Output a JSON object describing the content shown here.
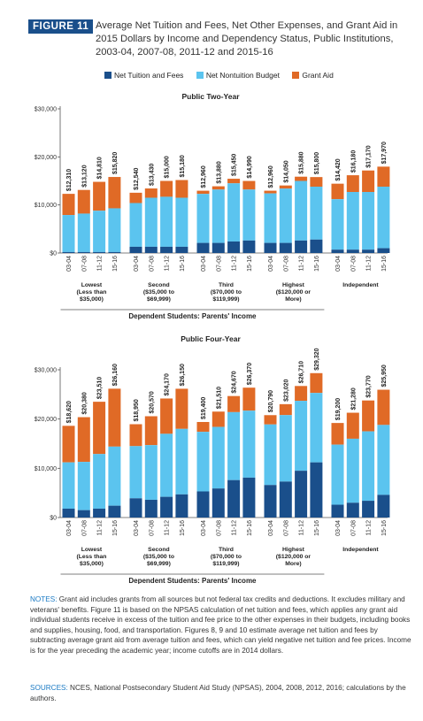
{
  "header": {
    "figure_label": "FIGURE 11",
    "title": "Average Net Tuition and Fees, Net Other Expenses, and Grant Aid in 2015 Dollars by Income and Dependency Status, Public Institutions, 2003-04, 2007-08, 2011-12 and 2015-16"
  },
  "legend": [
    {
      "label": "Net Tuition and Fees",
      "color": "#1a4f8b"
    },
    {
      "label": "Net Nontuition Budget",
      "color": "#5bc4ef"
    },
    {
      "label": "Grant Aid",
      "color": "#e06a26"
    }
  ],
  "notes": {
    "label": "NOTES:",
    "text": "Grant aid includes grants from all sources but not federal tax credits and deductions. It excludes military and veterans' benefits. Figure 11 is based on the NPSAS calculation of net tuition and fees, which applies any grant aid individual students receive in excess of the tuition and fee price to the other expenses in their budgets, including books and supplies, housing, food, and transportation. Figures 8, 9 and 10 estimate average net tuition and fees by subtracting average grant aid from average tuition and fees, which can yield negative net tuition and fee prices. Income is for the year preceding the academic year; income cutoffs are in 2014 dollars."
  },
  "sources": {
    "label": "SOURCES:",
    "text": "NCES, National Postsecondary Student Aid Study (NPSAS), 2004, 2008, 2012, 2016; calculations by the authors."
  },
  "chart_data": [
    {
      "type": "bar",
      "stacked": true,
      "title": "Public Two-Year",
      "xlabel": "Dependent Students: Parents' Income",
      "ylim": [
        0,
        30000
      ],
      "yticks": [
        "$0",
        "$10,000",
        "$20,000",
        "$30,000"
      ],
      "grid": false,
      "years": [
        "03-04",
        "07-08",
        "11-12",
        "15-16"
      ],
      "groups": [
        {
          "label": [
            "Lowest",
            "(Less than",
            "$35,000)"
          ],
          "dependent": true,
          "tuition": [
            200,
            200,
            200,
            200
          ],
          "nontuition": [
            7900,
            8200,
            8800,
            9300
          ],
          "totals": [
            "$12,310",
            "$13,120",
            "$14,810",
            "$15,820"
          ]
        },
        {
          "label": [
            "Second",
            "($35,000 to",
            "$69,999)"
          ],
          "dependent": true,
          "tuition": [
            1300,
            1300,
            1300,
            1300
          ],
          "nontuition": [
            10400,
            11500,
            11700,
            11500
          ],
          "totals": [
            "$12,540",
            "$13,430",
            "$15,000",
            "$15,180"
          ]
        },
        {
          "label": [
            "Third",
            "($70,000 to",
            "$119,999)"
          ],
          "dependent": true,
          "tuition": [
            2100,
            2100,
            2400,
            2600
          ],
          "nontuition": [
            12300,
            13200,
            14500,
            13200
          ],
          "totals": [
            "$12,960",
            "$13,880",
            "$15,450",
            "$14,990"
          ]
        },
        {
          "label": [
            "Highest",
            "($120,000 or",
            "More)"
          ],
          "dependent": true,
          "tuition": [
            2100,
            2100,
            2600,
            2800
          ],
          "nontuition": [
            12400,
            13400,
            15000,
            13800
          ],
          "totals": [
            "$12,960",
            "$14,050",
            "$15,880",
            "$15,800"
          ]
        },
        {
          "label": [
            "Independent"
          ],
          "dependent": false,
          "tuition": [
            700,
            700,
            700,
            1000
          ],
          "nontuition": [
            11200,
            12700,
            12700,
            13800
          ],
          "totals": [
            "$14,420",
            "$16,180",
            "$17,170",
            "$17,970"
          ]
        }
      ]
    },
    {
      "type": "bar",
      "stacked": true,
      "title": "Public Four-Year",
      "xlabel": "Dependent Students: Parents' Income",
      "ylim": [
        0,
        30000
      ],
      "yticks": [
        "$0",
        "$10,000",
        "$20,000",
        "$30,000"
      ],
      "grid": false,
      "years": [
        "03-04",
        "07-08",
        "11-12",
        "15-16"
      ],
      "groups": [
        {
          "label": [
            "Lowest",
            "(Less than",
            "$35,000)"
          ],
          "dependent": true,
          "tuition": [
            1800,
            1500,
            1800,
            2400
          ],
          "nontuition": [
            11200,
            11300,
            12900,
            14400
          ],
          "totals": [
            "$18,620",
            "$20,380",
            "$23,510",
            "$26,160"
          ]
        },
        {
          "label": [
            "Second",
            "($35,000 to",
            "$69,999)"
          ],
          "dependent": true,
          "tuition": [
            3900,
            3600,
            4200,
            4700
          ],
          "nontuition": [
            14500,
            14700,
            17000,
            18000
          ],
          "totals": [
            "$18,950",
            "$20,570",
            "$24,170",
            "$26,150"
          ]
        },
        {
          "label": [
            "Third",
            "($70,000 to",
            "$119,999)"
          ],
          "dependent": true,
          "tuition": [
            5300,
            5900,
            7600,
            8100
          ],
          "nontuition": [
            17400,
            18400,
            21400,
            21700
          ],
          "totals": [
            "$19,400",
            "$21,510",
            "$24,670",
            "$26,370"
          ]
        },
        {
          "label": [
            "Highest",
            "($120,000 or",
            "More)"
          ],
          "dependent": true,
          "tuition": [
            6600,
            7300,
            9500,
            11200
          ],
          "nontuition": [
            18900,
            20800,
            23700,
            25300
          ],
          "totals": [
            "$20,790",
            "$23,020",
            "$26,710",
            "$29,320"
          ]
        },
        {
          "label": [
            "Independent"
          ],
          "dependent": false,
          "tuition": [
            2600,
            3000,
            3400,
            4600
          ],
          "nontuition": [
            14800,
            16000,
            17500,
            18800
          ],
          "totals": [
            "$19,200",
            "$21,280",
            "$23,770",
            "$25,950"
          ]
        }
      ]
    }
  ]
}
